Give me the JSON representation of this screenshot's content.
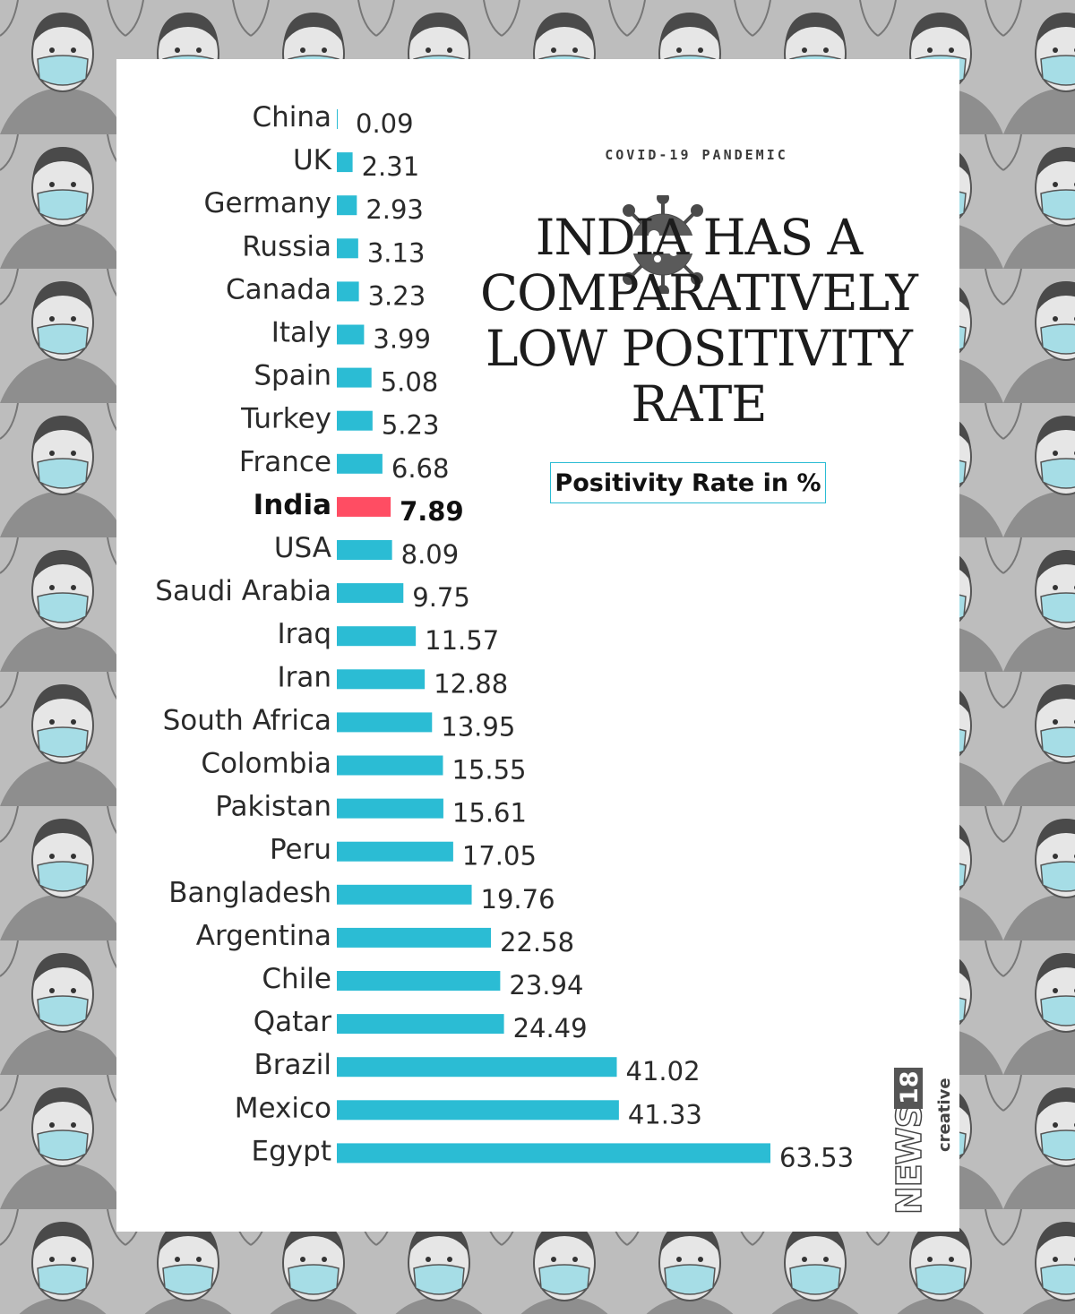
{
  "header": {
    "badge_text": "COVID-19 PANDEMIC",
    "title": "INDIA HAS A COMPARATIVELY LOW POSITIVITY RATE",
    "legend": "Positivity Rate in %"
  },
  "branding": {
    "logo_word": "NEWS",
    "logo_number": "18",
    "logo_sub": "creative"
  },
  "colors": {
    "bar": "#2bbcd4",
    "highlight_bar": "#ff4d63",
    "text": "#2a2a2a"
  },
  "chart_data": {
    "type": "bar",
    "orientation": "horizontal",
    "title": "INDIA HAS A COMPARATIVELY LOW POSITIVITY RATE",
    "xlabel": "",
    "ylabel": "",
    "legend": [
      "Positivity Rate in %"
    ],
    "highlight": "India",
    "categories": [
      "China",
      "UK",
      "Germany",
      "Russia",
      "Canada",
      "Italy",
      "Spain",
      "Turkey",
      "France",
      "India",
      "USA",
      "Saudi Arabia",
      "Iraq",
      "Iran",
      "South Africa",
      "Colombia",
      "Pakistan",
      "Peru",
      "Bangladesh",
      "Argentina",
      "Chile",
      "Qatar",
      "Brazil",
      "Mexico",
      "Egypt"
    ],
    "values": [
      0.09,
      2.31,
      2.93,
      3.13,
      3.23,
      3.99,
      5.08,
      5.23,
      6.68,
      7.89,
      8.09,
      9.75,
      11.57,
      12.88,
      13.95,
      15.55,
      15.61,
      17.05,
      19.76,
      22.58,
      23.94,
      24.49,
      41.02,
      41.33,
      63.53
    ],
    "value_labels": [
      "0.09",
      "2.31",
      "2.93",
      "3.13",
      "3.23",
      "3.99",
      "5.08",
      "5.23",
      "6.68",
      "7.89",
      "8.09",
      "9.75",
      "11.57",
      "12.88",
      "13.95",
      "15.55",
      "15.61",
      "17.05",
      "19.76",
      "22.58",
      "23.94",
      "24.49",
      "41.02",
      "41.33",
      "63.53"
    ],
    "xlim": [
      0,
      63.53
    ],
    "grid": false
  }
}
